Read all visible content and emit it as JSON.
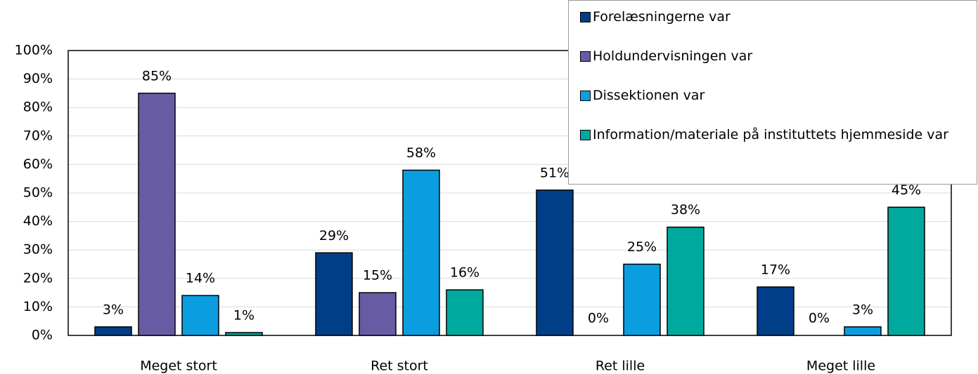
{
  "chart_data": {
    "type": "bar",
    "categories": [
      "Meget stort",
      "Ret stort",
      "Ret lille",
      "Meget lille"
    ],
    "series": [
      {
        "name": "Forelæsningerne var",
        "color": "#003f87",
        "values": [
          3,
          29,
          51,
          17
        ],
        "value_labels": [
          "3%",
          "29%",
          "51%",
          "17%"
        ]
      },
      {
        "name": "Holdundervisningen var",
        "color": "#675ba4",
        "values": [
          85,
          15,
          0,
          0
        ],
        "value_labels": [
          "85%",
          "15%",
          "0%",
          "0%"
        ]
      },
      {
        "name": "Dissektionen var",
        "color": "#0a9ee0",
        "values": [
          14,
          58,
          25,
          3
        ],
        "value_labels": [
          "14%",
          "58%",
          "25%",
          "3%"
        ]
      },
      {
        "name": "Information/materiale på instituttets hjemmeside var",
        "color": "#00a99d",
        "values": [
          1,
          16,
          38,
          45
        ],
        "value_labels": [
          "1%",
          "16%",
          "38%",
          "45%"
        ]
      }
    ],
    "ylim": [
      0,
      100
    ],
    "yticks": [
      {
        "value": 0,
        "label": "0%"
      },
      {
        "value": 10,
        "label": "10%"
      },
      {
        "value": 20,
        "label": "20%"
      },
      {
        "value": 30,
        "label": "30%"
      },
      {
        "value": 40,
        "label": "40%"
      },
      {
        "value": 50,
        "label": "50%"
      },
      {
        "value": 60,
        "label": "60%"
      },
      {
        "value": 70,
        "label": "70%"
      },
      {
        "value": 80,
        "label": "80%"
      },
      {
        "value": 90,
        "label": "90%"
      },
      {
        "value": 100,
        "label": "100%"
      }
    ],
    "grid": true,
    "legend": "upper right"
  }
}
